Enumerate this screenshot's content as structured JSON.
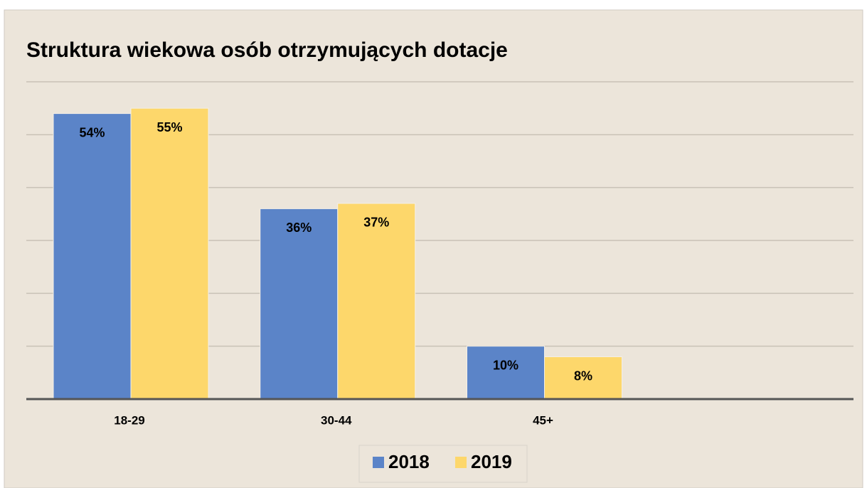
{
  "chart_data": {
    "type": "bar",
    "title": "Struktura wiekowa osób otrzymujących dotacje",
    "categories": [
      "18-29",
      "30-44",
      "45+",
      null
    ],
    "series": [
      {
        "name": "2018",
        "color": "#5b84c8",
        "values": [
          54,
          36,
          10,
          null
        ],
        "value_labels": [
          "54%",
          "36%",
          "10%",
          null
        ]
      },
      {
        "name": "2019",
        "color": "#fdd76b",
        "values": [
          55,
          37,
          8,
          null
        ],
        "value_labels": [
          "55%",
          "37%",
          "8%",
          null
        ]
      }
    ],
    "ylim": [
      0,
      60
    ],
    "yticks": [
      0,
      10,
      20,
      30,
      40,
      50,
      60
    ],
    "grid": true,
    "legend": "bottom"
  }
}
